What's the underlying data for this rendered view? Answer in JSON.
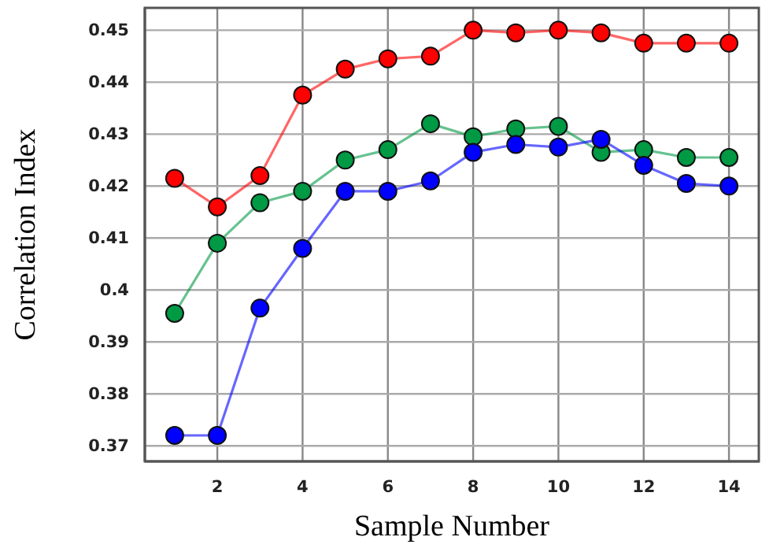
{
  "chart_data": {
    "type": "line",
    "xlabel": "Sample Number",
    "ylabel": "Correlation Index",
    "x": [
      1,
      2,
      3,
      4,
      5,
      6,
      7,
      8,
      9,
      10,
      11,
      12,
      13,
      14
    ],
    "xlim": [
      0.3,
      14.7
    ],
    "xticks": [
      2,
      4,
      6,
      8,
      10,
      12,
      14
    ],
    "ylim": [
      0.367,
      0.4543
    ],
    "yticks": [
      0.37,
      0.38,
      0.39,
      {
        "value": 0.4,
        "label": "0.4"
      },
      0.41,
      0.42,
      0.43,
      0.44,
      0.45
    ],
    "grid": true,
    "marker": "circle",
    "line_style": "solid",
    "series": [
      {
        "color": "#ff0000",
        "values": [
          0.4215,
          0.416,
          0.422,
          0.4375,
          0.4425,
          0.4445,
          0.445,
          0.45,
          0.4495,
          0.45,
          0.4495,
          0.4475,
          0.4475,
          0.4475
        ]
      },
      {
        "color": "#009944",
        "values": [
          0.3955,
          0.409,
          0.4168,
          0.419,
          0.425,
          0.427,
          0.432,
          0.4295,
          0.431,
          0.4315,
          0.4265,
          0.427,
          0.4255,
          0.4255
        ]
      },
      {
        "color": "#0000ff",
        "values": [
          0.372,
          0.372,
          0.3965,
          0.408,
          0.419,
          0.419,
          0.421,
          0.4265,
          0.428,
          0.4275,
          0.429,
          0.424,
          0.4205,
          0.42
        ]
      }
    ]
  }
}
